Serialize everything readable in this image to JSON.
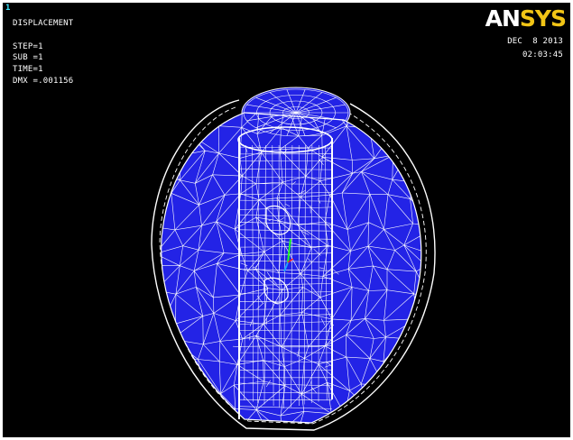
{
  "window": {
    "number": "1"
  },
  "annotation": {
    "title": "DISPLACEMENT",
    "step": "STEP=1",
    "sub": "SUB =1",
    "time": "TIME=1",
    "dmx": "DMX =.001156"
  },
  "stamp": {
    "date": "DEC  8 2013",
    "time": "02:03:45"
  },
  "logo": {
    "part1": "AN",
    "part2": "SYS"
  },
  "colors": {
    "background": "#000000",
    "mesh_fill": "#2323e6",
    "mesh_lines": "#ffffff",
    "window_number": "#3fe8ff",
    "logo_accent": "#f2c516",
    "triad_x": "#ff2020",
    "triad_y": "#20ff20",
    "triad_z": "#20a0ff"
  },
  "icons": {
    "model": "fea-mesh-model-icon",
    "triad": "coordinate-triad-icon"
  }
}
